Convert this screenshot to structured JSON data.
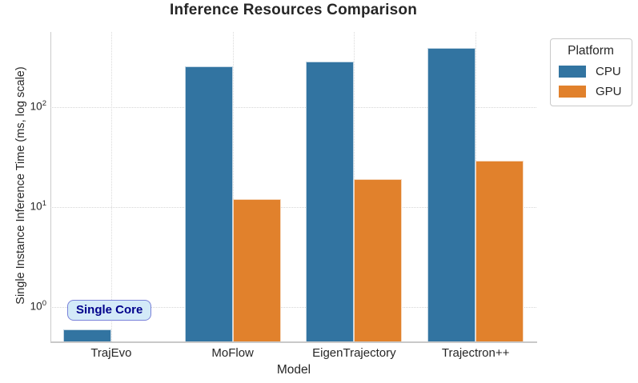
{
  "chart_data": {
    "type": "bar",
    "title": "Inference Resources Comparison",
    "xlabel": "Model",
    "ylabel": "Single Instance Inference Time (ms, log scale)",
    "yscale": "log",
    "ylim": [
      0.45,
      550
    ],
    "grid": true,
    "units": "ms",
    "categories": [
      "TrajEvo",
      "MoFlow",
      "EigenTrajectory",
      "Trajectron++"
    ],
    "series": [
      {
        "name": "CPU",
        "color": "#3274a1",
        "values": [
          0.6,
          255,
          285,
          390
        ]
      },
      {
        "name": "GPU",
        "color": "#e1812c",
        "values": [
          null,
          12,
          19,
          29
        ]
      }
    ],
    "yticks": [
      {
        "value": 1,
        "base": "10",
        "exponent": "0"
      },
      {
        "value": 10,
        "base": "10",
        "exponent": "1"
      },
      {
        "value": 100,
        "base": "10",
        "exponent": "2"
      }
    ],
    "legend": {
      "title": "Platform",
      "position": "outside upper right"
    },
    "annotation": {
      "text": "Single Core",
      "category": "TrajEvo"
    }
  }
}
